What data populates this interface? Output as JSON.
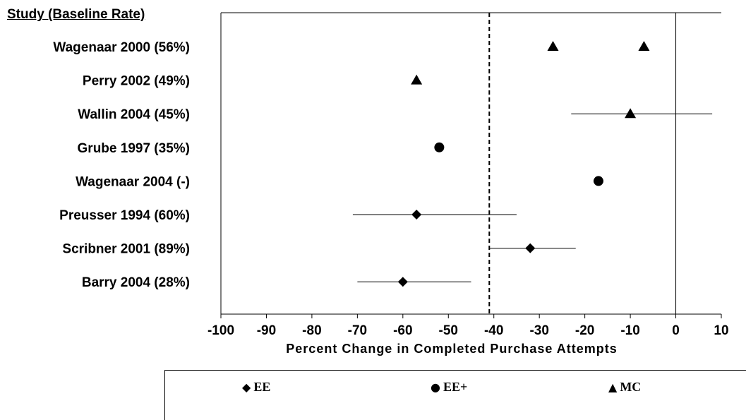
{
  "chart_data": {
    "type": "scatter",
    "row_header": "Study (Baseline Rate)",
    "studies": [
      "Wagenaar 2000 (56%)",
      "Perry 2002 (49%)",
      "Wallin 2004 (45%)",
      "Grube 1997 (35%)",
      "Wagenaar 2004 (-)",
      "Preusser 1994 (60%)",
      "Scribner 2001 (89%)",
      "Barry 2004 (28%)"
    ],
    "series": [
      {
        "name": "EE",
        "marker": "diamond",
        "points": [
          {
            "study": "Preusser 1994 (60%)",
            "x": -57,
            "ci": [
              -71,
              -35
            ]
          },
          {
            "study": "Scribner 2001 (89%)",
            "x": -32,
            "ci": [
              -41,
              -22
            ]
          },
          {
            "study": "Barry 2004 (28%)",
            "x": -60,
            "ci": [
              -70,
              -45
            ]
          }
        ]
      },
      {
        "name": "EE+",
        "marker": "circle",
        "points": [
          {
            "study": "Grube 1997 (35%)",
            "x": -52
          },
          {
            "study": "Wagenaar 2004 (-)",
            "x": -17
          }
        ]
      },
      {
        "name": "MC",
        "marker": "triangle",
        "points": [
          {
            "study": "Wagenaar 2000 (56%)",
            "x": -27
          },
          {
            "study": "Wagenaar 2000 (56%)",
            "x": -7
          },
          {
            "study": "Perry 2002 (49%)",
            "x": -57
          },
          {
            "study": "Wallin 2004 (45%)",
            "x": -10,
            "ci": [
              -23,
              8
            ]
          }
        ]
      }
    ],
    "xlabel": "Percent Change in Completed Purchase Attempts",
    "xlim": [
      -100,
      10
    ],
    "xticks": [
      -100,
      -90,
      -80,
      -70,
      -60,
      -50,
      -40,
      -30,
      -20,
      -10,
      0,
      10
    ],
    "reference_lines": [
      {
        "x": -41,
        "style": "dashed"
      },
      {
        "x": 0,
        "style": "solid"
      }
    ],
    "legend_position": "bottom",
    "legend": [
      {
        "symbol": "◆",
        "label": "EE"
      },
      {
        "symbol": "●",
        "label": "EE+"
      },
      {
        "symbol": "▲",
        "label": "MC"
      }
    ]
  }
}
